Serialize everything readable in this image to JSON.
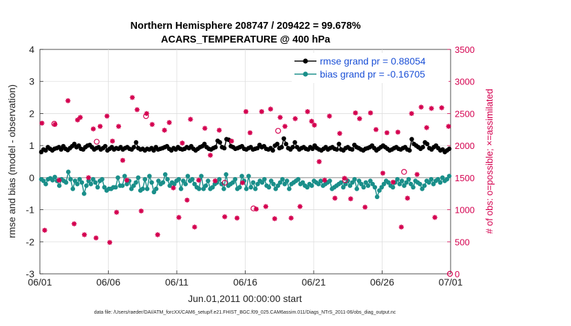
{
  "chart_data": {
    "type": "line",
    "title_line1": "Northern Hemisphere 208747 / 209422 = 99.678%",
    "title_line2": "ACARS_TEMPERATURE @ 400 hPa",
    "xlabel": "Jun.01,2011 00:00:00 start",
    "ylabel_left": "rmse and bias (model - observation)",
    "ylabel_right": "# of obs: o=possible; ×=assimilated",
    "footnote": "data file: /Users/raeder/DAI/ATM_forcXX/CAM6_setup/f.e21.FHIST_BGC.f09_025.CAM6assim.011/Diags_NTrS_2011-06/obs_diag_output.nc",
    "xlim": [
      0,
      30
    ],
    "ylim_left": [
      -3,
      4
    ],
    "ylim_right": [
      0,
      3500
    ],
    "x_ticks": [
      {
        "value": 0,
        "label": "06/01"
      },
      {
        "value": 5,
        "label": "06/06"
      },
      {
        "value": 10,
        "label": "06/11"
      },
      {
        "value": 15,
        "label": "06/16"
      },
      {
        "value": 20,
        "label": "06/21"
      },
      {
        "value": 25,
        "label": "06/26"
      },
      {
        "value": 30,
        "label": "07/01"
      }
    ],
    "y_ticks_left": [
      {
        "value": 4,
        "label": "4"
      },
      {
        "value": 3,
        "label": "3"
      },
      {
        "value": 2,
        "label": "2"
      },
      {
        "value": 1,
        "label": "1"
      },
      {
        "value": 0,
        "label": "0"
      },
      {
        "value": -1,
        "label": "-1"
      },
      {
        "value": -2,
        "label": "-2"
      },
      {
        "value": -3,
        "label": "-3"
      }
    ],
    "y_ticks_right": [
      {
        "value": 3500,
        "label": "3500"
      },
      {
        "value": 3000,
        "label": "3000"
      },
      {
        "value": 2500,
        "label": "2500"
      },
      {
        "value": 2000,
        "label": "2000"
      },
      {
        "value": 1500,
        "label": "1500"
      },
      {
        "value": 1000,
        "label": "1000"
      },
      {
        "value": 500,
        "label": "500"
      },
      {
        "value": 0,
        "label": "0"
      }
    ],
    "series": [
      {
        "name": "rmse grand pr = 0.88054",
        "axis": "left",
        "color": "#000000",
        "values": [
          0.8,
          0.88,
          0.85,
          0.95,
          0.9,
          0.85,
          0.9,
          0.92,
          0.95,
          0.88,
          0.98,
          0.9,
          0.86,
          0.92,
          0.98,
          1.05,
          0.95,
          1.0,
          0.9,
          0.88,
          0.95,
          1.0,
          1.02,
          0.95,
          0.88,
          0.92,
          0.95,
          0.88,
          0.92,
          0.98,
          0.85,
          0.9,
          0.95,
          0.88,
          0.92,
          0.9,
          0.95,
          0.88,
          0.92,
          0.95,
          0.9,
          0.88,
          0.95,
          1.1,
          0.92,
          0.88,
          0.9,
          0.85,
          0.9,
          0.88,
          0.92,
          0.85,
          0.95,
          0.88,
          0.9,
          0.92,
          0.95,
          0.98,
          0.9,
          0.85,
          0.92,
          0.88,
          0.95,
          0.9,
          0.88,
          0.9,
          0.95,
          0.92,
          0.98,
          0.9,
          0.85,
          0.9,
          0.95,
          0.98,
          1.05,
          0.95,
          0.9,
          0.88,
          0.92,
          0.95,
          1.15,
          1.1,
          0.95,
          0.92,
          1.2,
          1.18,
          0.98,
          0.95,
          0.9,
          0.92,
          0.95,
          0.98,
          0.9,
          0.88,
          0.92,
          0.95,
          0.88,
          0.9,
          0.92,
          1.02,
          0.95,
          0.98,
          0.9,
          0.88,
          0.92,
          0.85,
          1.0,
          1.05,
          0.92,
          0.95,
          1.22,
          1.05,
          0.92,
          0.88,
          0.95,
          1.1,
          0.95,
          0.88,
          0.92,
          0.95,
          0.9,
          0.88,
          0.95,
          0.9,
          1.0,
          0.92,
          0.88,
          0.85,
          0.9,
          0.95,
          0.88,
          0.92,
          0.95,
          0.9,
          0.88,
          1.05,
          0.88,
          0.85,
          0.92,
          0.95,
          0.9,
          0.88,
          1.02,
          0.95,
          0.92,
          0.88,
          0.85,
          0.9,
          0.92,
          0.95,
          1.0,
          0.92,
          0.85,
          0.9,
          0.95,
          1.0,
          0.95,
          0.9,
          0.85,
          0.88,
          0.92,
          0.95,
          0.9,
          0.88,
          0.92,
          0.95,
          0.88,
          0.85,
          1.2,
          1.05,
          1.0,
          0.95,
          0.9,
          0.95,
          1.1,
          1.05,
          0.92,
          0.88,
          0.95,
          1.0,
          0.92,
          0.85,
          0.88,
          0.8,
          0.85,
          0.9
        ]
      },
      {
        "name": "bias grand pr = -0.16705",
        "axis": "left",
        "color": "#1a8f8a",
        "values": [
          -0.05,
          -0.1,
          -0.2,
          -0.05,
          -0.02,
          -0.08,
          0.02,
          -0.1,
          -0.25,
          -0.05,
          -0.1,
          -0.15,
          0.18,
          -0.05,
          -0.35,
          -0.1,
          -0.2,
          -0.05,
          -0.15,
          -0.5,
          -0.25,
          -0.1,
          -0.2,
          -0.05,
          -0.15,
          -0.3,
          -0.1,
          -0.05,
          -0.3,
          -0.4,
          -0.35,
          -0.35,
          -0.3,
          -0.3,
          0.0,
          -0.25,
          -0.25,
          0.05,
          -0.2,
          -0.1,
          -0.35,
          -0.25,
          -0.15,
          0.0,
          -0.4,
          -0.35,
          -0.05,
          -0.35,
          0.05,
          -0.15,
          -0.45,
          -0.35,
          -0.1,
          -0.2,
          -0.15,
          0.1,
          -0.05,
          -0.25,
          -0.15,
          -0.2,
          -0.1,
          -0.05,
          -0.35,
          -0.1,
          -0.2,
          0.05,
          -0.1,
          -0.05,
          -0.2,
          -0.3,
          -0.35,
          0.05,
          -0.35,
          -0.25,
          -0.1,
          -0.35,
          -0.3,
          -0.2,
          -0.15,
          -0.05,
          -0.2,
          -0.35,
          0.1,
          -0.25,
          -0.2,
          -0.15,
          -0.05,
          -0.35,
          -0.3,
          0.05,
          -0.1,
          -0.35,
          0.05,
          -0.3,
          -0.15,
          -0.35,
          -0.2,
          -0.1,
          -0.15,
          -0.05,
          -0.25,
          -0.3,
          -0.1,
          -0.2,
          -0.35,
          -0.25,
          -0.15,
          -0.05,
          -0.2,
          -0.1,
          -0.35,
          -0.2,
          -0.15,
          -0.1,
          -0.05,
          -0.2,
          -0.15,
          -0.25,
          -0.3,
          -0.2,
          -0.25,
          -0.1,
          -0.15,
          -0.2,
          -0.1,
          -0.25,
          -0.2,
          -0.15,
          -0.1,
          -0.35,
          -0.3,
          -0.25,
          -0.2,
          -0.15,
          -0.3,
          -0.2,
          -0.1,
          -0.25,
          -0.15,
          -0.05,
          -0.35,
          -0.1,
          -0.2,
          -0.3,
          -0.15,
          -0.25,
          -0.1,
          -0.2,
          -0.3,
          -0.6,
          -0.4,
          -0.3,
          -0.2,
          -0.1,
          -0.15,
          -0.25,
          -0.3,
          -0.15,
          -0.05,
          -0.2,
          -0.1,
          -0.25,
          -0.15,
          -0.05,
          -0.2,
          -0.3,
          -0.1,
          -0.15,
          -0.2,
          -0.35,
          -0.25,
          -0.1,
          -0.15,
          -0.05,
          -0.2,
          -0.1,
          -0.05,
          -0.15,
          0.0,
          -0.1,
          -0.05,
          0.05
        ]
      },
      {
        "name": "obs assimilated",
        "axis": "right",
        "color": "#d4004f",
        "marker": "asterisk",
        "x": [
          0.15,
          0.35,
          1.1,
          1.4,
          2.05,
          2.5,
          2.75,
          2.95,
          3.25,
          3.55,
          3.9,
          4.1,
          4.4,
          4.9,
          5.1,
          5.3,
          5.6,
          5.75,
          6.05,
          6.35,
          6.75,
          7.1,
          7.4,
          7.8,
          8.2,
          8.6,
          9.1,
          9.45,
          9.75,
          10.15,
          10.4,
          10.75,
          11.0,
          11.3,
          11.6,
          12.05,
          12.45,
          12.8,
          13.1,
          13.5,
          14.0,
          14.4,
          14.8,
          15.05,
          15.35,
          15.8,
          16.2,
          16.5,
          16.85,
          17.15,
          17.55,
          17.9,
          18.35,
          18.65,
          19.0,
          19.55,
          19.85,
          20.05,
          20.4,
          20.8,
          21.15,
          21.55,
          21.9,
          22.25,
          22.7,
          23.05,
          23.35,
          23.75,
          24.15,
          24.55,
          25.05,
          25.35,
          25.8,
          26.15,
          26.4,
          26.85,
          27.15,
          27.55,
          27.85,
          28.25,
          28.6,
          28.85,
          29.35,
          29.85
        ],
        "values": [
          2350,
          680,
          2330,
          1460,
          2700,
          780,
          2400,
          2440,
          610,
          1500,
          2260,
          560,
          2300,
          2460,
          490,
          2070,
          960,
          2300,
          1770,
          1460,
          2750,
          2560,
          980,
          2500,
          2330,
          610,
          2240,
          2360,
          1340,
          880,
          2040,
          1150,
          2410,
          730,
          1460,
          2270,
          1850,
          1450,
          2240,
          890,
          2070,
          870,
          1420,
          2530,
          2200,
          1010,
          2530,
          1050,
          2570,
          860,
          2440,
          2300,
          870,
          2420,
          1050,
          2530,
          2380,
          2320,
          1750,
          1460,
          2460,
          1180,
          2190,
          1490,
          1170,
          2510,
          2420,
          1040,
          2510,
          2250,
          1570,
          2200,
          1430,
          2210,
          730,
          1180,
          2500,
          1550,
          2600,
          2280,
          2580,
          880,
          2590,
          2300
        ]
      },
      {
        "name": "obs possible",
        "axis": "right",
        "color": "#d4004f",
        "marker": "circle",
        "x": [
          1.05,
          4.15,
          7.75,
          13.5,
          15.6,
          17.4,
          22.3,
          26.6,
          29.95
        ],
        "values": [
          2340,
          2060,
          2460,
          1420,
          1020,
          2230,
          1460,
          1590,
          0
        ]
      }
    ]
  }
}
